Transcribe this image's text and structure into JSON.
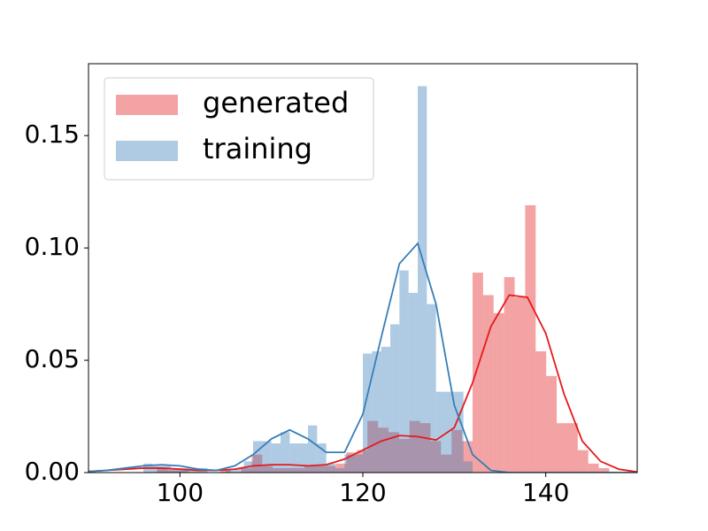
{
  "chart_data": {
    "type": "histogram",
    "xlim": [
      90,
      150
    ],
    "ylim": [
      0,
      0.182
    ],
    "xticks": [
      100,
      120,
      140
    ],
    "yticks": [
      {
        "value": 0,
        "label": "0.00"
      },
      0.05,
      {
        "value": 0.1,
        "label": "0.10"
      },
      0.15
    ],
    "legend": "upper left",
    "bar_opacity": 0.4,
    "series": [
      {
        "name": "generated",
        "color": "#e41a1c",
        "bins": [
          97.5,
          98.65,
          99.8,
          100.95,
          102.1,
          103.25,
          104.4,
          105.55,
          106.7,
          107.85,
          109,
          110.15,
          111.3,
          112.45,
          113.6,
          114.75,
          115.9,
          117.05,
          118.2,
          119.35,
          120.5,
          121.65,
          122.8,
          123.95,
          125.1,
          126.25,
          127.4,
          128.55,
          129.7,
          130.85,
          132,
          133.15,
          134.3,
          135.45,
          136.6,
          137.75,
          138.9,
          140.05,
          141.2,
          142.35,
          143.5,
          144.65,
          145.8,
          146.95
        ],
        "counts": [
          0.002,
          0.001,
          0.001,
          0,
          0,
          0,
          0.001,
          0,
          0.002,
          0.008,
          0.003,
          0.002,
          0.002,
          0.002,
          0.003,
          0.003,
          0.003,
          0.004,
          0.009,
          0.01,
          0.023,
          0.02,
          0.018,
          0.015,
          0.023,
          0.022,
          0.014,
          0.008,
          0.019,
          0.014,
          0.089,
          0.079,
          0.071,
          0.087,
          0.078,
          0.119,
          0.054,
          0.043,
          0.022,
          0.022,
          0.01,
          0.004,
          0.002
        ],
        "kde_x": [
          90,
          92,
          94,
          96,
          98,
          100,
          102,
          104,
          106,
          108,
          110,
          112,
          114,
          116,
          118,
          120,
          122,
          124,
          126,
          128,
          130,
          132,
          134,
          136,
          138,
          140,
          142,
          144,
          146,
          148,
          150
        ],
        "kde_y": [
          0.0005,
          0.001,
          0.0015,
          0.002,
          0.002,
          0.0015,
          0.001,
          0.001,
          0.0015,
          0.003,
          0.0035,
          0.0035,
          0.003,
          0.0035,
          0.006,
          0.01,
          0.014,
          0.0165,
          0.016,
          0.0145,
          0.02,
          0.04,
          0.065,
          0.079,
          0.078,
          0.062,
          0.035,
          0.014,
          0.005,
          0.0015,
          0.0003
        ]
      },
      {
        "name": "training",
        "color": "#377eb8",
        "bins": [
          96,
          97,
          98,
          99,
          100,
          101,
          102,
          103,
          104,
          105,
          106,
          107,
          108,
          109,
          110,
          111,
          112,
          113,
          114,
          115,
          116,
          117,
          118,
          119,
          120,
          121,
          122,
          123,
          124,
          125,
          126,
          127,
          128,
          129,
          130,
          131,
          132
        ],
        "counts": [
          0.004,
          0.003,
          0.003,
          0.002,
          0.002,
          0.002,
          0.002,
          0,
          0,
          0.001,
          0.002,
          0.005,
          0.014,
          0.014,
          0.013,
          0.018,
          0.013,
          0.013,
          0.021,
          0.013,
          0.004,
          0.002,
          0.008,
          0.008,
          0.053,
          0.054,
          0.056,
          0.066,
          0.09,
          0.08,
          0.172,
          0.075,
          0.036,
          0.036,
          0.036,
          0.005
        ],
        "kde_x": [
          90,
          92,
          94,
          96,
          98,
          100,
          102,
          104,
          106,
          108,
          110,
          112,
          114,
          116,
          118,
          120,
          122,
          124,
          126,
          128,
          130,
          132,
          134,
          136,
          138,
          140,
          142,
          144,
          146,
          148,
          150
        ],
        "kde_y": [
          0.0005,
          0.001,
          0.002,
          0.003,
          0.0035,
          0.003,
          0.0015,
          0.001,
          0.003,
          0.008,
          0.015,
          0.019,
          0.015,
          0.009,
          0.009,
          0.026,
          0.06,
          0.093,
          0.102,
          0.075,
          0.03,
          0.008,
          0.001,
          0,
          0,
          0,
          0,
          0,
          0,
          0,
          0
        ]
      }
    ]
  }
}
